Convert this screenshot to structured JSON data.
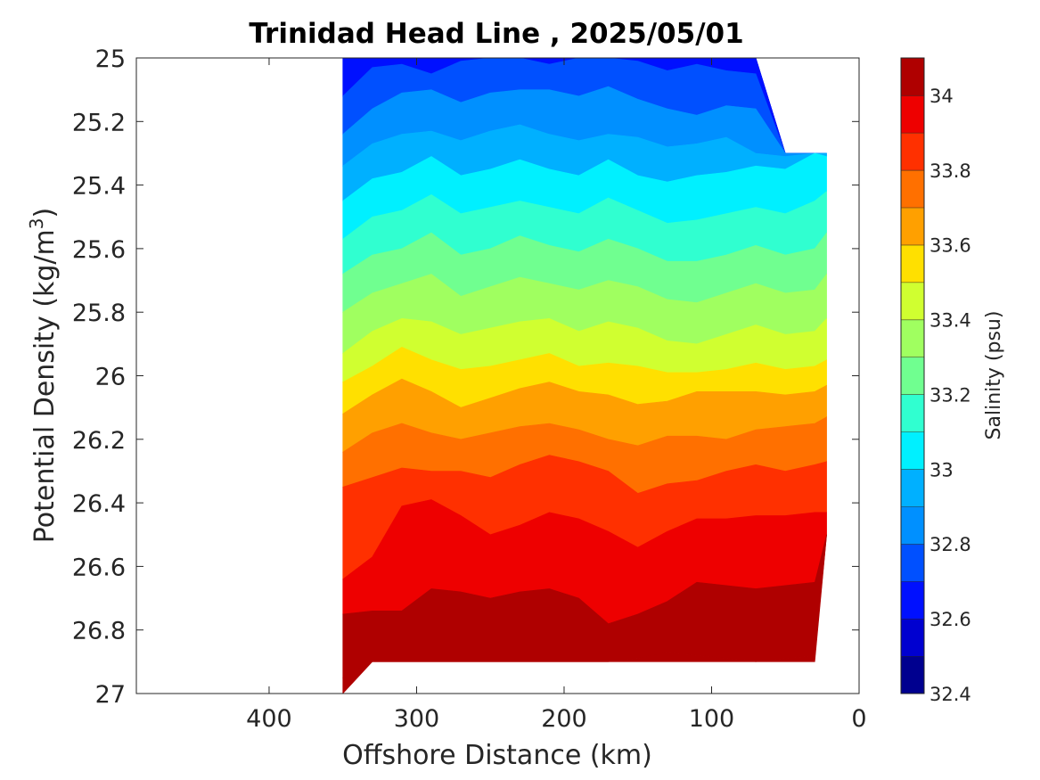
{
  "chart_data": {
    "type": "contour",
    "title": "Trinidad Head Line , 2025/05/01",
    "xlabel": "Offshore Distance (km)",
    "ylabel": {
      "base": "Potential Density (kg/m",
      "sup": "3",
      "close": ")"
    },
    "xlim": [
      490,
      0
    ],
    "x_reversed": true,
    "xticks": [
      400,
      300,
      200,
      100,
      0
    ],
    "ylim": [
      25,
      27
    ],
    "y_reversed": true,
    "yticks": [
      "25",
      "25.2",
      "25.4",
      "25.6",
      "25.8",
      "26",
      "26.2",
      "26.4",
      "26.6",
      "26.8",
      "27"
    ],
    "colorbar": {
      "label": "Salinity (psu)",
      "limits": [
        32.4,
        34.1
      ],
      "ticks": [
        "32.4",
        "32.6",
        "32.8",
        "33",
        "33.2",
        "33.4",
        "33.6",
        "33.8",
        "34"
      ],
      "levels": [
        32.4,
        32.5,
        32.6,
        32.7,
        32.8,
        32.9,
        33.0,
        33.1,
        33.2,
        33.3,
        33.4,
        33.5,
        33.6,
        33.7,
        33.8,
        33.9,
        34.0,
        34.1
      ],
      "colors": [
        "#00008f",
        "#0000d0",
        "#0010ff",
        "#0050ff",
        "#0090ff",
        "#00b0ff",
        "#00f0ff",
        "#30ffd0",
        "#70ff90",
        "#a0ff60",
        "#d0ff30",
        "#ffe000",
        "#ffa000",
        "#ff7000",
        "#ff3000",
        "#ee0000",
        "#af0000"
      ]
    },
    "stations_km": [
      350,
      330,
      310,
      290,
      270,
      250,
      230,
      210,
      190,
      170,
      150,
      130,
      110,
      90,
      70,
      50,
      30,
      22
    ],
    "data_top_density": [
      25.0,
      25.0,
      25.0,
      25.0,
      25.0,
      25.0,
      25.0,
      25.0,
      25.0,
      25.0,
      25.0,
      25.0,
      25.0,
      25.0,
      25.0,
      25.3,
      25.3,
      25.3
    ],
    "data_bottom_density": [
      27.0,
      26.9,
      26.9,
      26.9,
      26.9,
      26.9,
      26.9,
      26.9,
      26.9,
      26.9,
      26.9,
      26.9,
      26.9,
      26.9,
      26.9,
      26.9,
      26.9,
      26.5
    ],
    "isohalines": [
      {
        "value": 32.5,
        "depth": [
          25.0,
          24.95,
          24.95,
          24.95,
          24.95,
          24.95,
          24.95,
          24.95,
          24.95,
          24.95,
          24.95,
          24.95,
          24.95,
          24.95,
          24.95,
          24.95,
          24.95,
          24.95
        ]
      },
      {
        "value": 32.6,
        "depth": [
          25.0,
          24.95,
          24.95,
          24.95,
          24.95,
          24.95,
          24.95,
          24.95,
          24.95,
          24.95,
          24.95,
          24.95,
          24.95,
          24.95,
          24.95,
          24.95,
          24.95,
          24.95
        ]
      },
      {
        "value": 32.7,
        "depth": [
          25.12,
          25.03,
          25.02,
          25.05,
          25.01,
          25.0,
          25.0,
          25.02,
          24.99,
          24.99,
          25.01,
          25.04,
          25.02,
          25.04,
          25.05,
          25.3,
          25.3,
          25.3
        ]
      },
      {
        "value": 32.8,
        "depth": [
          25.24,
          25.16,
          25.11,
          25.1,
          25.14,
          25.11,
          25.1,
          25.1,
          25.12,
          25.09,
          25.13,
          25.16,
          25.18,
          25.15,
          25.16,
          25.3,
          25.3,
          25.3
        ]
      },
      {
        "value": 32.9,
        "depth": [
          25.34,
          25.27,
          25.24,
          25.23,
          25.26,
          25.23,
          25.21,
          25.24,
          25.26,
          25.24,
          25.25,
          25.28,
          25.27,
          25.25,
          25.3,
          25.31,
          25.3,
          25.3
        ]
      },
      {
        "value": 33.0,
        "depth": [
          25.45,
          25.38,
          25.36,
          25.31,
          25.37,
          25.35,
          25.32,
          25.35,
          25.37,
          25.32,
          25.37,
          25.39,
          25.37,
          25.36,
          25.34,
          25.35,
          25.3,
          25.31
        ]
      },
      {
        "value": 33.1,
        "depth": [
          25.57,
          25.5,
          25.48,
          25.43,
          25.49,
          25.47,
          25.45,
          25.47,
          25.49,
          25.44,
          25.48,
          25.52,
          25.51,
          25.49,
          25.47,
          25.49,
          25.45,
          25.42
        ]
      },
      {
        "value": 33.2,
        "depth": [
          25.68,
          25.62,
          25.6,
          25.55,
          25.62,
          25.6,
          25.56,
          25.59,
          25.61,
          25.57,
          25.6,
          25.64,
          25.64,
          25.62,
          25.59,
          25.62,
          25.6,
          25.55
        ]
      },
      {
        "value": 33.3,
        "depth": [
          25.8,
          25.74,
          25.71,
          25.68,
          25.75,
          25.72,
          25.69,
          25.71,
          25.73,
          25.7,
          25.72,
          25.76,
          25.77,
          25.74,
          25.71,
          25.74,
          25.73,
          25.68
        ]
      },
      {
        "value": 33.4,
        "depth": [
          25.93,
          25.86,
          25.82,
          25.83,
          25.87,
          25.85,
          25.83,
          25.82,
          25.86,
          25.83,
          25.85,
          25.89,
          25.9,
          25.87,
          25.84,
          25.87,
          25.86,
          25.82
        ]
      },
      {
        "value": 33.5,
        "depth": [
          26.02,
          25.97,
          25.91,
          25.95,
          25.98,
          25.97,
          25.95,
          25.93,
          25.97,
          25.96,
          25.97,
          25.99,
          25.99,
          25.98,
          25.96,
          25.98,
          25.97,
          25.95
        ]
      },
      {
        "value": 33.6,
        "depth": [
          26.12,
          26.06,
          26.01,
          26.05,
          26.1,
          26.07,
          26.04,
          26.02,
          26.05,
          26.06,
          26.09,
          26.08,
          26.05,
          26.05,
          26.05,
          26.06,
          26.05,
          26.03
        ]
      },
      {
        "value": 33.7,
        "depth": [
          26.24,
          26.18,
          26.15,
          26.18,
          26.2,
          26.18,
          26.16,
          26.15,
          26.17,
          26.2,
          26.22,
          26.19,
          26.19,
          26.2,
          26.17,
          26.16,
          26.15,
          26.13
        ]
      },
      {
        "value": 33.8,
        "depth": [
          26.35,
          26.32,
          26.29,
          26.3,
          26.3,
          26.32,
          26.28,
          26.25,
          26.27,
          26.3,
          26.37,
          26.34,
          26.33,
          26.3,
          26.28,
          26.3,
          26.28,
          26.27
        ]
      },
      {
        "value": 33.9,
        "depth": [
          26.64,
          26.57,
          26.41,
          26.39,
          26.44,
          26.5,
          26.47,
          26.43,
          26.45,
          26.49,
          26.54,
          26.49,
          26.45,
          26.45,
          26.44,
          26.44,
          26.43,
          26.43
        ]
      },
      {
        "value": 34.0,
        "depth": [
          26.75,
          26.74,
          26.74,
          26.67,
          26.68,
          26.7,
          26.68,
          26.67,
          26.7,
          26.78,
          26.75,
          26.71,
          26.65,
          26.66,
          26.67,
          26.66,
          26.65,
          26.5
        ]
      },
      {
        "value": 34.1,
        "depth": [
          26.95,
          26.9,
          26.9,
          26.9,
          26.9,
          26.9,
          26.9,
          26.9,
          26.9,
          26.9,
          26.89,
          26.87,
          26.88,
          26.89,
          26.9,
          26.89,
          26.88,
          26.5
        ]
      }
    ],
    "grid": false
  }
}
